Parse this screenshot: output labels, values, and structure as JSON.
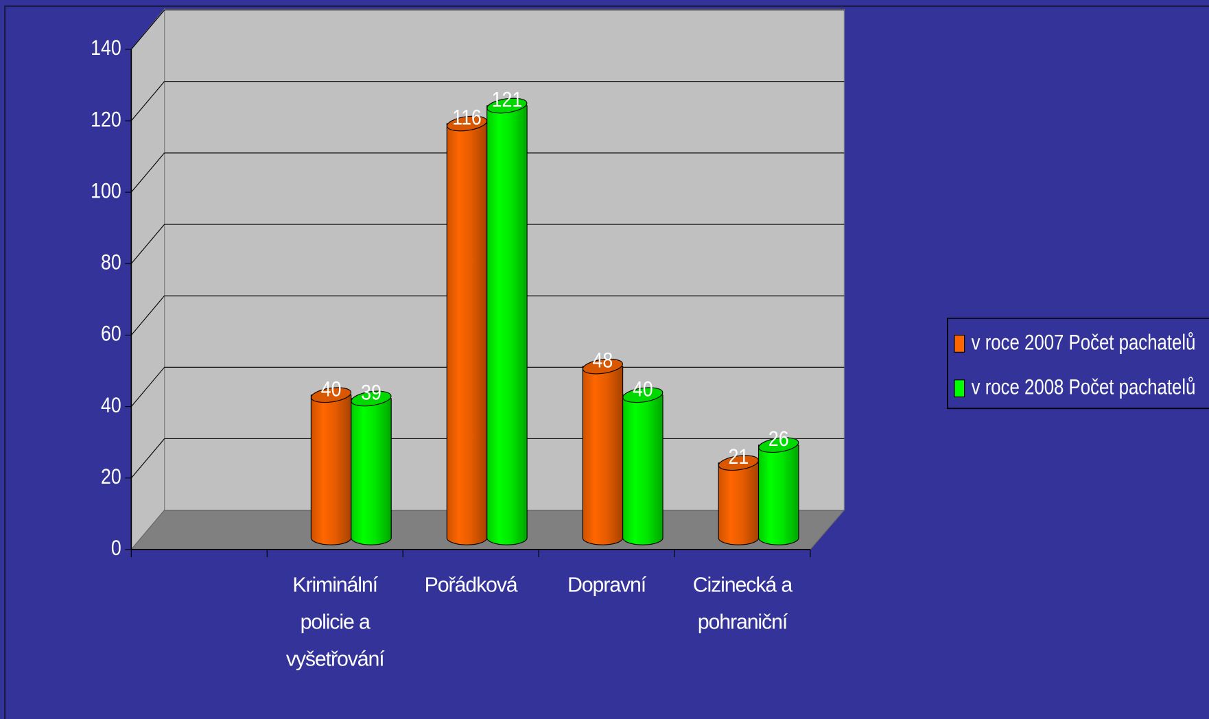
{
  "chart_data": {
    "type": "bar3d",
    "categories": [
      null,
      "Kriminální policie a vyšetřování",
      "Pořádková",
      "Dopravní",
      "Cizinecká a pohraniční"
    ],
    "series": [
      {
        "name": "v roce 2007 Počet pachatelů",
        "color": "#ff6600",
        "values": [
          null,
          40,
          116,
          48,
          21
        ]
      },
      {
        "name": "v roce 2008 Počet pachatelů",
        "color": "#00ff00",
        "values": [
          null,
          39,
          121,
          40,
          26
        ]
      }
    ],
    "ylim": [
      0,
      140
    ],
    "yticks": [
      0,
      20,
      40,
      60,
      80,
      100,
      120,
      140
    ],
    "grid": true,
    "legend": "right"
  }
}
